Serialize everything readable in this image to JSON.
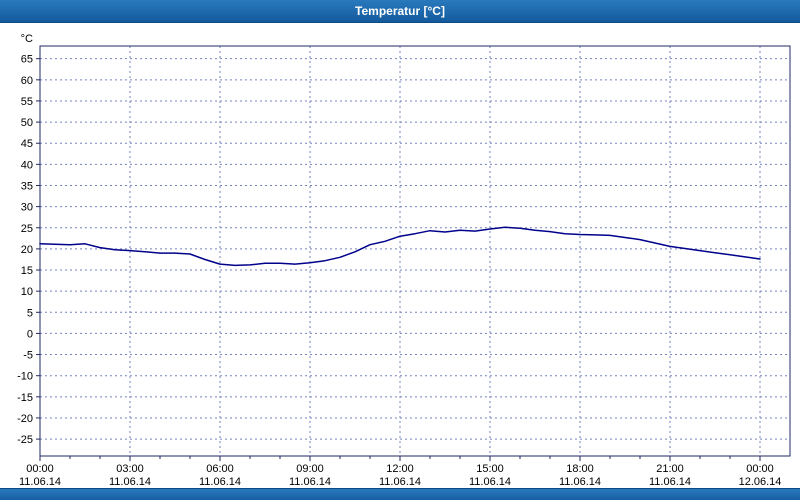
{
  "window": {
    "title": "Temperatur [°C]",
    "titlebar_color": "#135a9d"
  },
  "chart_data": {
    "type": "line",
    "title": "Temperatur [°C]",
    "ylabel": "°C",
    "xlabel": "",
    "ylim": [
      -29,
      68
    ],
    "y_ticks": [
      65,
      60,
      55,
      50,
      45,
      40,
      35,
      30,
      25,
      20,
      15,
      10,
      5,
      0,
      -5,
      -10,
      -15,
      -20,
      -25
    ],
    "x_range_hours": [
      0,
      24
    ],
    "x_tick_step_hours": 3,
    "x_tick_labels": [
      {
        "time": "00:00",
        "date": "11.06.14"
      },
      {
        "time": "03:00",
        "date": "11.06.14"
      },
      {
        "time": "06:00",
        "date": "11.06.14"
      },
      {
        "time": "09:00",
        "date": "11.06.14"
      },
      {
        "time": "12:00",
        "date": "11.06.14"
      },
      {
        "time": "15:00",
        "date": "11.06.14"
      },
      {
        "time": "18:00",
        "date": "11.06.14"
      },
      {
        "time": "21:00",
        "date": "11.06.14"
      },
      {
        "time": "00:00",
        "date": "12.06.14"
      }
    ],
    "grid": true,
    "legend": "none",
    "line_color": "#00008b",
    "grid_color": "#7583bd",
    "axis_color": "#1f2a60",
    "plot_bg": "#ffffff",
    "series": [
      {
        "name": "Temperatur",
        "x_hours": [
          0,
          0.5,
          1,
          1.5,
          2,
          2.5,
          3,
          3.5,
          4,
          4.5,
          5,
          5.5,
          6,
          6.5,
          7,
          7.5,
          8,
          8.5,
          9,
          9.5,
          10,
          10.5,
          11,
          11.5,
          12,
          12.5,
          13,
          13.5,
          14,
          14.5,
          15,
          15.5,
          16,
          16.5,
          17,
          17.5,
          18,
          18.5,
          19,
          19.5,
          20,
          20.5,
          21,
          21.5,
          22,
          22.5,
          23,
          23.5,
          24
        ],
        "values": [
          21.2,
          21.1,
          21.0,
          21.2,
          20.3,
          19.8,
          19.6,
          19.3,
          19.0,
          19.0,
          18.8,
          17.5,
          16.4,
          16.1,
          16.2,
          16.6,
          16.6,
          16.4,
          16.7,
          17.2,
          18.0,
          19.3,
          21.0,
          21.8,
          23.0,
          23.6,
          24.3,
          24.0,
          24.4,
          24.2,
          24.7,
          25.1,
          24.9,
          24.4,
          24.1,
          23.6,
          23.4,
          23.3,
          23.2,
          22.7,
          22.2,
          21.4,
          20.6,
          20.1,
          19.6,
          19.1,
          18.6,
          18.1,
          17.6
        ]
      }
    ]
  }
}
